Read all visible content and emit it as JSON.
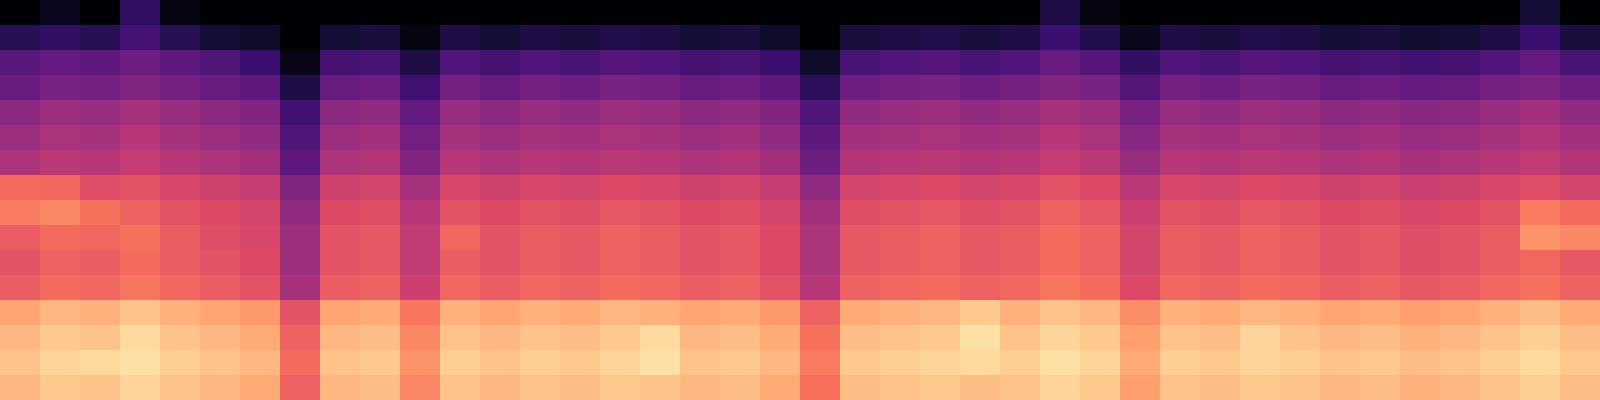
{
  "chart_data": {
    "type": "heatmap",
    "tick_labels": false,
    "zlim": [
      -80,
      0
    ],
    "cells": [
      [
        -12,
        -9,
        -10,
        -7,
        -10,
        -12,
        -14,
        -27,
        -12,
        -11,
        -20,
        -10,
        -12,
        -10,
        -11,
        -9,
        -10,
        -12,
        -11,
        -14,
        -24,
        -11,
        -10,
        -9,
        -11,
        -10,
        -7,
        -9,
        -16,
        -10,
        -11,
        -9,
        -10,
        -12,
        -11,
        -13,
        -12,
        -10,
        -8,
        -11
      ],
      [
        -10,
        -7,
        -6,
        -5,
        -8,
        -10,
        -12,
        -25,
        -10,
        -9,
        -18,
        -8,
        -10,
        -8,
        -9,
        -7,
        -5,
        -10,
        -9,
        -12,
        -22,
        -9,
        -8,
        -7,
        -6,
        -8,
        -5,
        -7,
        -14,
        -8,
        -9,
        -7,
        -8,
        -10,
        -9,
        -11,
        -10,
        -8,
        -6,
        -9
      ],
      [
        -12,
        -9,
        -10,
        -6,
        -10,
        -12,
        -14,
        -27,
        -12,
        -11,
        -20,
        -10,
        -12,
        -10,
        -11,
        -9,
        -6,
        -12,
        -11,
        -14,
        -24,
        -11,
        -10,
        -9,
        -5,
        -10,
        -7,
        -9,
        -16,
        -10,
        -11,
        -7,
        -10,
        -12,
        -11,
        -13,
        -12,
        -10,
        -8,
        -11
      ],
      [
        -15,
        -12,
        -13,
        -10,
        -13,
        -15,
        -17,
        -30,
        -15,
        -14,
        -23,
        -13,
        -15,
        -13,
        -14,
        -12,
        -13,
        -15,
        -14,
        -17,
        -27,
        -14,
        -13,
        -12,
        -9,
        -13,
        -10,
        -12,
        -19,
        -13,
        -14,
        -12,
        -13,
        -15,
        -14,
        -16,
        -15,
        -13,
        -11,
        -14
      ],
      [
        -28,
        -25,
        -26,
        -23,
        -26,
        -28,
        -30,
        -43,
        -28,
        -27,
        -36,
        -26,
        -28,
        -26,
        -27,
        -25,
        -26,
        -28,
        -27,
        -30,
        -40,
        -27,
        -26,
        -25,
        -27,
        -26,
        -23,
        -25,
        -32,
        -26,
        -27,
        -25,
        -26,
        -28,
        -27,
        -29,
        -28,
        -26,
        -24,
        -27
      ],
      [
        -30,
        -27,
        -28,
        -25,
        -28,
        -30,
        -32,
        -45,
        -30,
        -29,
        -38,
        -28,
        -30,
        -28,
        -29,
        -27,
        -28,
        -30,
        -29,
        -32,
        -42,
        -29,
        -28,
        -27,
        -29,
        -28,
        -25,
        -27,
        -34,
        -28,
        -29,
        -27,
        -28,
        -30,
        -29,
        -31,
        -30,
        -28,
        -26,
        -29
      ],
      [
        -28,
        -25,
        -26,
        -24,
        -28,
        -31,
        -33,
        -45,
        -30,
        -29,
        -38,
        -26,
        -30,
        -28,
        -29,
        -27,
        -28,
        -30,
        -29,
        -32,
        -42,
        -29,
        -28,
        -27,
        -29,
        -28,
        -25,
        -27,
        -34,
        -28,
        -29,
        -27,
        -28,
        -30,
        -29,
        -31,
        -30,
        -28,
        -18,
        -20
      ],
      [
        -22,
        -20,
        -24,
        -27,
        -30,
        -32,
        -34,
        -47,
        -32,
        -31,
        -40,
        -30,
        -32,
        -30,
        -31,
        -29,
        -30,
        -32,
        -31,
        -34,
        -44,
        -31,
        -30,
        -29,
        -31,
        -30,
        -27,
        -29,
        -36,
        -30,
        -31,
        -29,
        -30,
        -32,
        -31,
        -33,
        -32,
        -30,
        -22,
        -25
      ],
      [
        -25,
        -26,
        -31,
        -30,
        -33,
        -35,
        -37,
        -50,
        -35,
        -34,
        -43,
        -33,
        -35,
        -33,
        -34,
        -32,
        -33,
        -35,
        -34,
        -37,
        -47,
        -34,
        -33,
        -32,
        -34,
        -33,
        -30,
        -32,
        -39,
        -33,
        -34,
        -32,
        -33,
        -35,
        -34,
        -36,
        -35,
        -33,
        -31,
        -34
      ],
      [
        -42,
        -39,
        -40,
        -37,
        -40,
        -42,
        -44,
        -57,
        -42,
        -41,
        -50,
        -40,
        -42,
        -40,
        -41,
        -39,
        -40,
        -42,
        -41,
        -44,
        -54,
        -41,
        -40,
        -39,
        -41,
        -40,
        -37,
        -39,
        -46,
        -40,
        -41,
        -39,
        -40,
        -42,
        -41,
        -43,
        -42,
        -40,
        -38,
        -41
      ],
      [
        -45,
        -42,
        -43,
        -40,
        -43,
        -45,
        -47,
        -60,
        -45,
        -44,
        -53,
        -43,
        -45,
        -43,
        -44,
        -42,
        -43,
        -45,
        -44,
        -47,
        -57,
        -44,
        -43,
        -42,
        -44,
        -43,
        -40,
        -42,
        -49,
        -43,
        -44,
        -42,
        -43,
        -45,
        -44,
        -46,
        -45,
        -43,
        -41,
        -44
      ],
      [
        -48,
        -45,
        -46,
        -43,
        -46,
        -48,
        -50,
        -63,
        -48,
        -47,
        -56,
        -46,
        -48,
        -46,
        -47,
        -45,
        -46,
        -48,
        -47,
        -50,
        -60,
        -47,
        -46,
        -45,
        -47,
        -46,
        -43,
        -45,
        -52,
        -46,
        -47,
        -45,
        -46,
        -48,
        -47,
        -49,
        -48,
        -46,
        -44,
        -47
      ],
      [
        -55,
        -52,
        -53,
        -50,
        -53,
        -55,
        -57,
        -70,
        -55,
        -54,
        -63,
        -53,
        -55,
        -53,
        -54,
        -52,
        -53,
        -55,
        -54,
        -57,
        -67,
        -54,
        -53,
        -52,
        -54,
        -53,
        -50,
        -52,
        -59,
        -53,
        -54,
        -52,
        -53,
        -55,
        -54,
        -56,
        -55,
        -53,
        -51,
        -54
      ],
      [
        -58,
        -56,
        -57,
        -54,
        -57,
        -60,
        -64,
        -77,
        -62,
        -61,
        -70,
        -60,
        -62,
        -60,
        -61,
        -59,
        -60,
        -62,
        -61,
        -64,
        -74,
        -61,
        -60,
        -59,
        -61,
        -60,
        -55,
        -59,
        -66,
        -60,
        -61,
        -59,
        -60,
        -62,
        -61,
        -63,
        -62,
        -60,
        -56,
        -61
      ],
      [
        -68,
        -66,
        -68,
        -62,
        -68,
        -72,
        -74,
        -80,
        -72,
        -71,
        -78,
        -70,
        -72,
        -70,
        -71,
        -69,
        -70,
        -72,
        -71,
        -74,
        -80,
        -71,
        -70,
        -69,
        -71,
        -70,
        -64,
        -69,
        -76,
        -70,
        -71,
        -69,
        -70,
        -72,
        -71,
        -73,
        -72,
        -70,
        -64,
        -71
      ],
      [
        -80,
        -76,
        -80,
        -66,
        -78,
        -80,
        -80,
        -80,
        -80,
        -80,
        -80,
        -80,
        -80,
        -80,
        -80,
        -80,
        -80,
        -80,
        -80,
        -80,
        -80,
        -80,
        -80,
        -80,
        -80,
        -80,
        -70,
        -78,
        -80,
        -80,
        -80,
        -80,
        -80,
        -80,
        -80,
        -80,
        -80,
        -80,
        -72,
        -80
      ]
    ]
  }
}
